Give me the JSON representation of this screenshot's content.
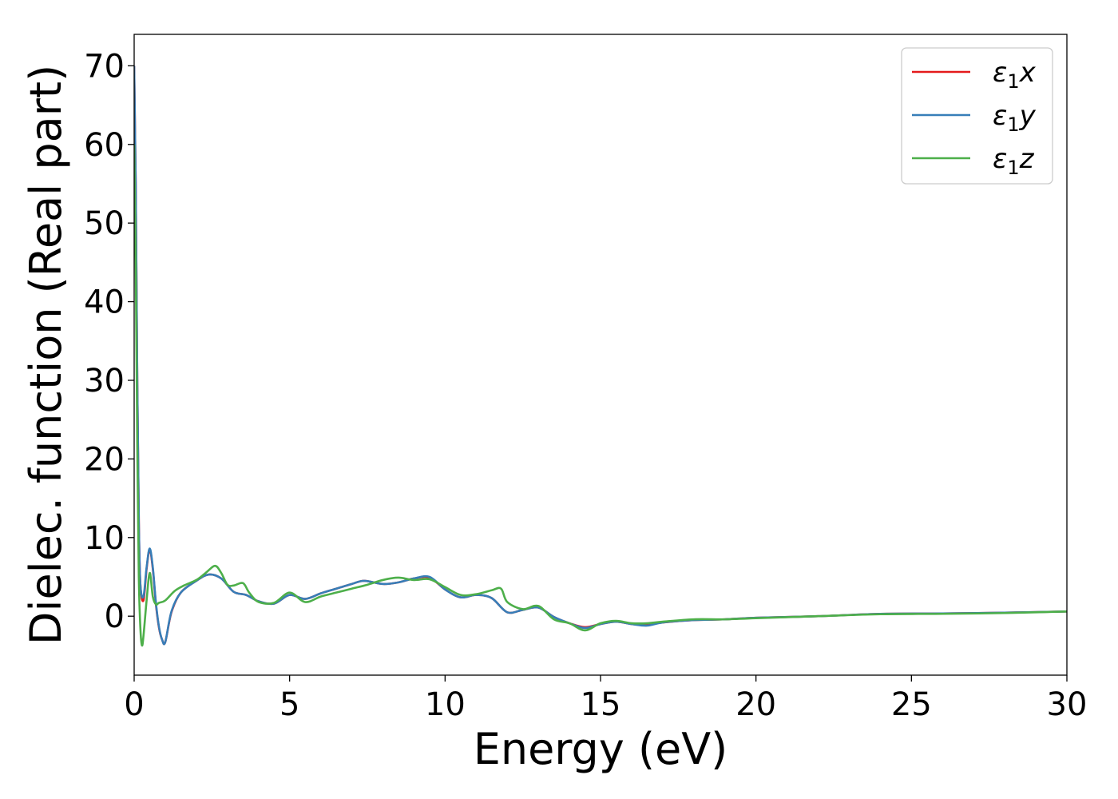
{
  "chart_data": {
    "type": "line",
    "title": "",
    "xlabel": "Energy (eV)",
    "ylabel": "Dielec. function (Real part)",
    "xlim": [
      0,
      30
    ],
    "ylim": [
      -7.5,
      74
    ],
    "xticks": [
      0,
      5,
      10,
      15,
      20,
      25,
      30
    ],
    "yticks": [
      0,
      10,
      20,
      30,
      40,
      50,
      60,
      70
    ],
    "grid": false,
    "legend": "top-right",
    "series": [
      {
        "name": "ε1x",
        "name_base": "ε",
        "name_sub": "1",
        "name_suffix": "x",
        "color": "#e41a1c",
        "x": [
          0.0,
          0.05,
          0.1,
          0.15,
          0.2,
          0.3,
          0.4,
          0.5,
          0.6,
          0.7,
          0.8,
          0.9,
          1.0,
          1.2,
          1.5,
          2.0,
          2.4,
          2.8,
          3.2,
          3.6,
          4.0,
          4.5,
          5.0,
          5.5,
          6.0,
          6.5,
          7.0,
          7.4,
          8.0,
          8.5,
          9.0,
          9.5,
          10.0,
          10.5,
          11.0,
          11.5,
          12.0,
          12.5,
          13.0,
          13.5,
          14.0,
          14.5,
          15.0,
          15.5,
          16.0,
          16.5,
          17.0,
          18.0,
          19.0,
          20.0,
          22.0,
          24.0,
          26.0,
          28.0,
          30.0
        ],
        "y": [
          70,
          55,
          30,
          12,
          4,
          2,
          6,
          8.5,
          6,
          1.5,
          -1.5,
          -3,
          -3.3,
          0.5,
          3,
          4.5,
          5.3,
          4.8,
          3.1,
          2.7,
          1.9,
          1.6,
          2.7,
          2.2,
          2.9,
          3.5,
          4.1,
          4.5,
          4.1,
          4.3,
          4.8,
          4.9,
          3.4,
          2.4,
          2.7,
          2.3,
          0.5,
          0.8,
          1.1,
          -0.1,
          -0.9,
          -1.4,
          -1.0,
          -0.7,
          -1.0,
          -1.1,
          -0.8,
          -0.5,
          -0.4,
          -0.2,
          0.0,
          0.3,
          0.35,
          0.45,
          0.6
        ]
      },
      {
        "name": "ε1y",
        "name_base": "ε",
        "name_sub": "1",
        "name_suffix": "y",
        "color": "#377eb8",
        "x": [
          0.0,
          0.05,
          0.1,
          0.15,
          0.2,
          0.3,
          0.4,
          0.5,
          0.6,
          0.7,
          0.8,
          0.9,
          1.0,
          1.2,
          1.5,
          2.0,
          2.4,
          2.8,
          3.2,
          3.6,
          4.0,
          4.5,
          5.0,
          5.5,
          6.0,
          6.5,
          7.0,
          7.4,
          8.0,
          8.5,
          9.0,
          9.5,
          10.0,
          10.5,
          11.0,
          11.5,
          12.0,
          12.5,
          13.0,
          13.5,
          14.0,
          14.5,
          15.0,
          15.5,
          16.0,
          16.5,
          17.0,
          18.0,
          19.0,
          20.0,
          22.0,
          24.0,
          26.0,
          28.0,
          30.0
        ],
        "y": [
          70,
          55,
          30,
          12,
          4,
          2.5,
          6.2,
          8.6,
          6.2,
          1.7,
          -1.4,
          -3,
          -3.3,
          0.6,
          3,
          4.5,
          5.3,
          4.8,
          3.1,
          2.7,
          1.9,
          1.6,
          2.7,
          2.2,
          2.9,
          3.5,
          4.1,
          4.5,
          4.1,
          4.3,
          4.8,
          5.0,
          3.4,
          2.4,
          2.7,
          2.3,
          0.5,
          0.8,
          1.1,
          -0.1,
          -0.9,
          -1.5,
          -1.0,
          -0.7,
          -1.0,
          -1.2,
          -0.8,
          -0.5,
          -0.4,
          -0.2,
          0.0,
          0.3,
          0.35,
          0.45,
          0.6
        ]
      },
      {
        "name": "ε1z",
        "name_base": "ε",
        "name_sub": "1",
        "name_suffix": "z",
        "color": "#4daf4a",
        "x": [
          0.0,
          0.05,
          0.1,
          0.15,
          0.2,
          0.25,
          0.3,
          0.4,
          0.5,
          0.6,
          0.7,
          0.8,
          1.0,
          1.3,
          1.6,
          2.0,
          2.3,
          2.6,
          2.8,
          3.0,
          3.2,
          3.5,
          3.7,
          4.0,
          4.5,
          5.0,
          5.5,
          6.0,
          6.5,
          7.0,
          7.5,
          8.0,
          8.5,
          9.0,
          9.5,
          10.0,
          10.5,
          11.0,
          11.5,
          11.8,
          12.0,
          12.5,
          13.0,
          13.5,
          14.0,
          14.5,
          15.0,
          15.5,
          16.0,
          16.5,
          17.0,
          18.0,
          19.0,
          20.0,
          22.0,
          24.0,
          26.0,
          28.0,
          30.0
        ],
        "y": [
          60,
          45,
          22,
          5,
          -1.5,
          -3.7,
          -2.5,
          2,
          5.5,
          2.5,
          1.5,
          1.7,
          2.0,
          3.2,
          3.9,
          4.6,
          5.5,
          6.4,
          5.5,
          4.0,
          3.9,
          4.2,
          3.0,
          1.8,
          1.7,
          3.0,
          1.8,
          2.5,
          3.0,
          3.5,
          4.0,
          4.6,
          4.9,
          4.6,
          4.7,
          3.7,
          2.7,
          2.8,
          3.3,
          3.5,
          1.8,
          0.9,
          1.3,
          -0.4,
          -0.9,
          -1.8,
          -0.9,
          -0.6,
          -0.9,
          -0.9,
          -0.7,
          -0.4,
          -0.4,
          -0.25,
          0.0,
          0.25,
          0.3,
          0.4,
          0.6
        ]
      }
    ]
  }
}
